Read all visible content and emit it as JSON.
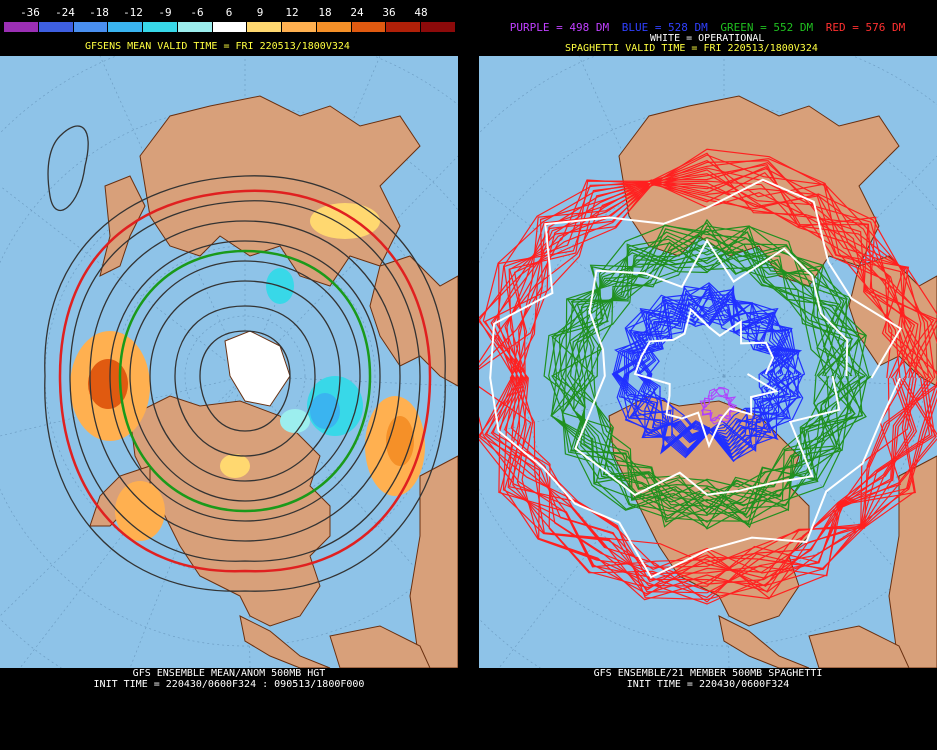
{
  "legend": {
    "labels": [
      "-36",
      "-24",
      "-18",
      "-12",
      "-9",
      "-6",
      "6",
      "9",
      "12",
      "18",
      "24",
      "36",
      "48"
    ],
    "colors": [
      "#9b2fb4",
      "#3e5fe0",
      "#4a8ff0",
      "#3ab4f0",
      "#38d8e8",
      "#9ceeee",
      "#ffffff",
      "#ffd870",
      "#ffb050",
      "#f59028",
      "#e05a10",
      "#b02008",
      "#8c0a0a"
    ]
  },
  "left_panel": {
    "title": "GFSENS MEAN VALID TIME = FRI 220513/1800V324",
    "footer_line1": "GFS ENSEMBLE MEAN/ANOM 500MB HGT",
    "footer_line2": "INIT TIME = 220430/0600F324 : 090513/1800F000"
  },
  "right_panel": {
    "legend": [
      {
        "text": "PURPLE = 498 DM",
        "color": "#c040ff"
      },
      {
        "text": "BLUE = 528 DM",
        "color": "#3040ff"
      },
      {
        "text": "GREEN = 552 DM",
        "color": "#20c020"
      },
      {
        "text": "RED = 576 DM",
        "color": "#ff3030"
      }
    ],
    "operational_label": "WHITE = OPERATIONAL",
    "title": "SPAGHETTI VALID TIME = FRI 220513/1800V324",
    "footer_line1": "GFS ENSEMBLE/21 MEMBER 500MB SPAGHETTI",
    "footer_line2": "INIT TIME = 220430/0600F324"
  },
  "colors": {
    "ocean": "#8ec3e8",
    "land": "#d8a07a",
    "border": "#6a3010",
    "title_yellow": "#ffff40"
  }
}
